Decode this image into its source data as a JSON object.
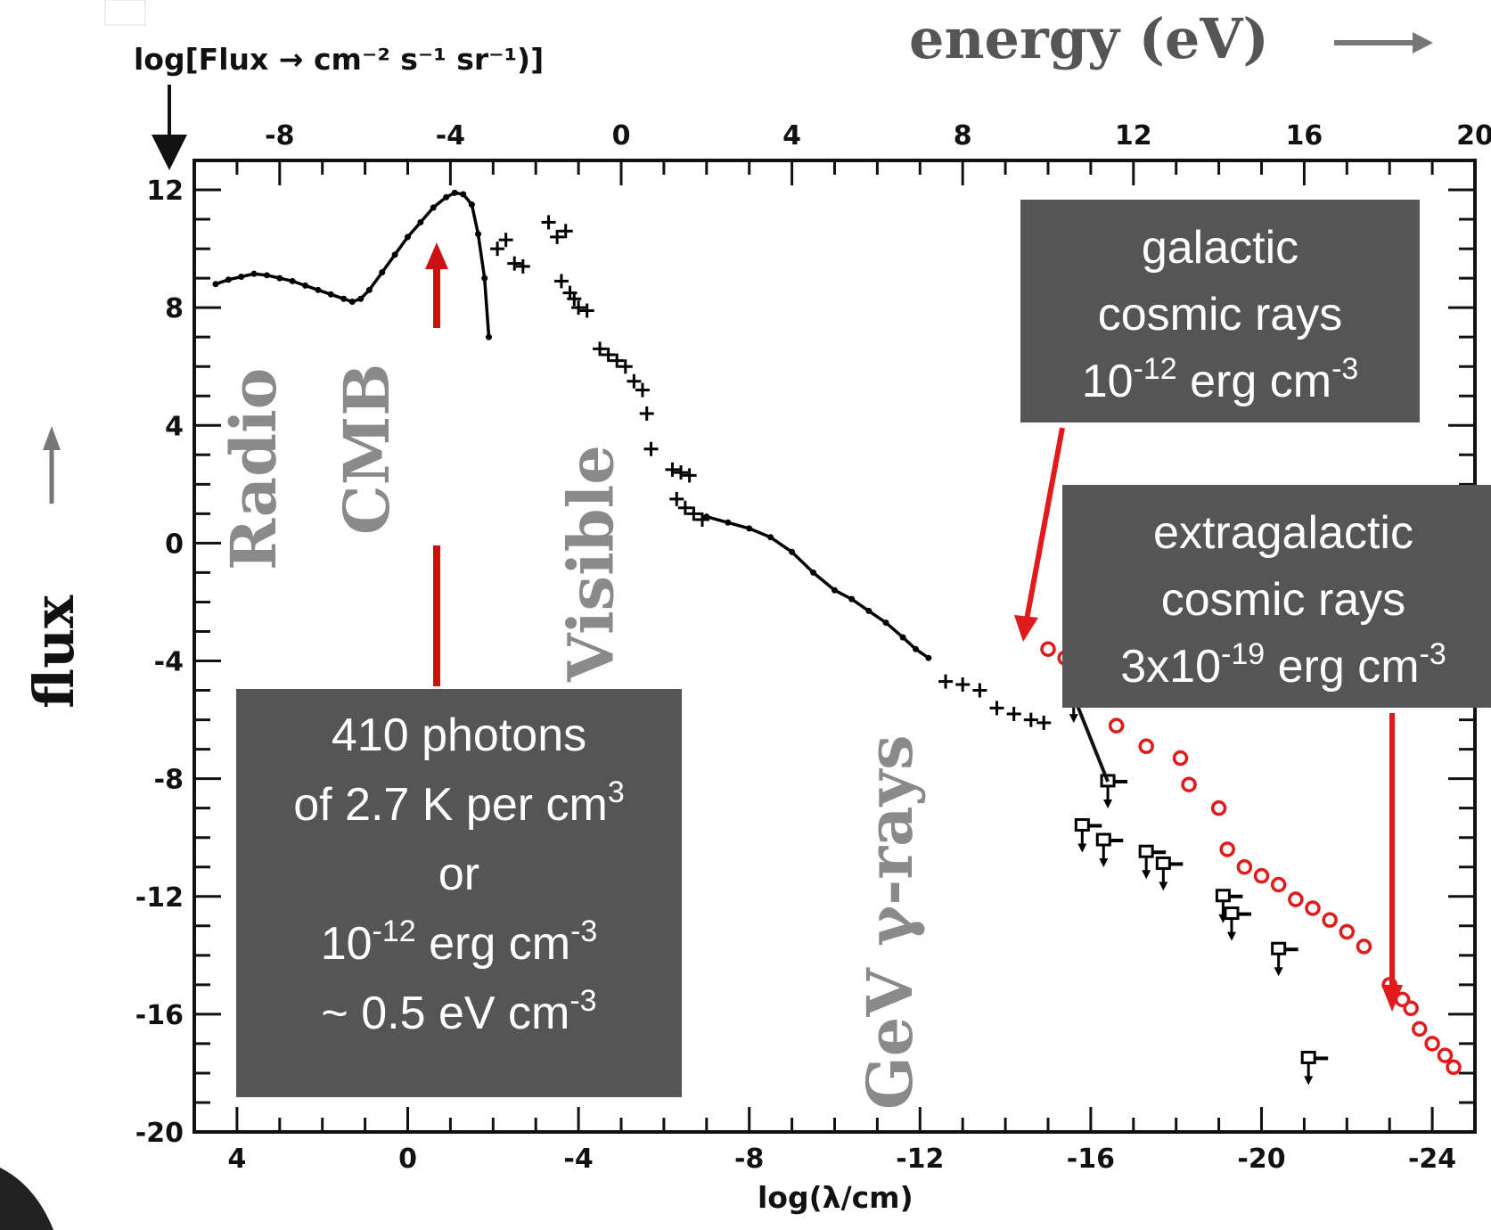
{
  "chart_data": {
    "type": "scatter",
    "top_axis": {
      "label": "energy (eV)",
      "range": [
        -10,
        20
      ],
      "ticks": [
        "-8",
        "-4",
        "0",
        "4",
        "8",
        "12",
        "16",
        "20"
      ]
    },
    "bottom_axis": {
      "label": "log(λ/cm)",
      "range": [
        5,
        -25
      ],
      "ticks": [
        "4",
        "0",
        "-4",
        "-8",
        "-12",
        "-16",
        "-20",
        "-24"
      ]
    },
    "y_axis": {
      "label": "log[Flux  →  cm⁻² s⁻¹ sr⁻¹)]",
      "side_label": "flux",
      "range": [
        -20,
        13
      ],
      "ticks": [
        "12",
        "8",
        "4",
        "0",
        "-4",
        "-8",
        "-12",
        "-16",
        "-20"
      ]
    },
    "bands": [
      {
        "label": "Radio",
        "lambda": 3.6
      },
      {
        "label": "CMB",
        "lambda": 0.95
      },
      {
        "label": "Visible",
        "lambda": -4.3
      },
      {
        "label": "GeV γ-rays",
        "lambda": -11.3
      }
    ],
    "series": [
      {
        "name": "",
        "color": "#000000",
        "style": "line",
        "points": [
          [
            4.5,
            8.8
          ],
          [
            4.2,
            8.95
          ],
          [
            3.9,
            9.05
          ],
          [
            3.6,
            9.15
          ],
          [
            3.3,
            9.1
          ],
          [
            3.0,
            9.0
          ],
          [
            2.7,
            8.9
          ],
          [
            2.4,
            8.75
          ],
          [
            2.1,
            8.6
          ],
          [
            1.8,
            8.45
          ],
          [
            1.5,
            8.3
          ],
          [
            1.3,
            8.2
          ],
          [
            1.1,
            8.3
          ],
          [
            0.9,
            8.6
          ],
          [
            0.6,
            9.2
          ],
          [
            0.3,
            9.8
          ],
          [
            0.0,
            10.4
          ],
          [
            -0.3,
            10.9
          ],
          [
            -0.6,
            11.4
          ],
          [
            -0.9,
            11.75
          ],
          [
            -1.1,
            11.9
          ],
          [
            -1.3,
            11.85
          ],
          [
            -1.5,
            11.5
          ],
          [
            -1.65,
            10.5
          ],
          [
            -1.8,
            9.0
          ],
          [
            -1.9,
            7.0
          ]
        ]
      },
      {
        "name": "",
        "color": "#000000",
        "style": "points",
        "points": [
          [
            -2.1,
            10.0
          ],
          [
            -2.3,
            10.3
          ],
          [
            -2.5,
            9.5
          ],
          [
            -2.7,
            9.4
          ],
          [
            -3.3,
            10.9
          ],
          [
            -3.5,
            10.4
          ],
          [
            -3.7,
            10.6
          ],
          [
            -3.6,
            8.9
          ],
          [
            -3.8,
            8.5
          ],
          [
            -3.9,
            8.3
          ],
          [
            -4.0,
            8.0
          ],
          [
            -4.2,
            7.9
          ],
          [
            -4.5,
            6.6
          ],
          [
            -4.7,
            6.4
          ],
          [
            -4.9,
            6.2
          ],
          [
            -5.1,
            6.0
          ],
          [
            -5.3,
            5.5
          ],
          [
            -5.5,
            5.2
          ],
          [
            -5.6,
            4.4
          ],
          [
            -5.7,
            3.2
          ],
          [
            -6.2,
            2.5
          ],
          [
            -6.4,
            2.4
          ],
          [
            -6.6,
            2.3
          ],
          [
            -6.3,
            1.5
          ],
          [
            -6.5,
            1.2
          ],
          [
            -6.7,
            1.0
          ],
          [
            -6.9,
            0.8
          ]
        ]
      },
      {
        "name": "",
        "color": "#000000",
        "style": "line",
        "points": [
          [
            -7.0,
            0.9
          ],
          [
            -7.5,
            0.7
          ],
          [
            -8.0,
            0.5
          ],
          [
            -8.5,
            0.2
          ],
          [
            -9.0,
            -0.3
          ],
          [
            -9.5,
            -1.0
          ],
          [
            -10.0,
            -1.6
          ],
          [
            -10.4,
            -1.9
          ],
          [
            -10.8,
            -2.3
          ],
          [
            -11.2,
            -2.7
          ],
          [
            -11.6,
            -3.2
          ],
          [
            -11.9,
            -3.6
          ],
          [
            -12.2,
            -3.9
          ]
        ]
      },
      {
        "name": "",
        "color": "#000000",
        "style": "points",
        "points": [
          [
            -12.6,
            -4.7
          ],
          [
            -13.0,
            -4.8
          ],
          [
            -13.4,
            -5.0
          ],
          [
            -13.8,
            -5.6
          ],
          [
            -14.2,
            -5.8
          ],
          [
            -14.6,
            -6.0
          ],
          [
            -14.9,
            -6.1
          ]
        ]
      },
      {
        "name": "",
        "color": "#000000",
        "style": "upper_limits",
        "points": [
          [
            -15.6,
            -5.2
          ],
          [
            -16.4,
            -8.1
          ],
          [
            -15.8,
            -9.6
          ],
          [
            -16.3,
            -10.1
          ],
          [
            -17.3,
            -10.5
          ],
          [
            -17.7,
            -10.9
          ],
          [
            -19.1,
            -12.0
          ],
          [
            -19.3,
            -12.6
          ],
          [
            -20.4,
            -13.8
          ],
          [
            -21.1,
            -17.5
          ]
        ]
      },
      {
        "name": "",
        "color": "#e11b1b",
        "style": "open_circles",
        "points": [
          [
            -15.0,
            -3.6
          ],
          [
            -15.4,
            -3.9
          ],
          [
            -15.8,
            -4.5
          ],
          [
            -16.6,
            -6.2
          ],
          [
            -17.3,
            -6.9
          ],
          [
            -18.1,
            -7.3
          ],
          [
            -18.3,
            -8.2
          ],
          [
            -19.0,
            -9.0
          ],
          [
            -19.2,
            -10.4
          ],
          [
            -19.6,
            -11.0
          ],
          [
            -20.0,
            -11.3
          ],
          [
            -20.4,
            -11.6
          ],
          [
            -20.8,
            -12.1
          ],
          [
            -21.2,
            -12.4
          ],
          [
            -21.6,
            -12.8
          ],
          [
            -22.0,
            -13.2
          ],
          [
            -22.4,
            -13.7
          ],
          [
            -23.0,
            -15.0
          ],
          [
            -23.3,
            -15.5
          ],
          [
            -23.5,
            -15.8
          ],
          [
            -23.7,
            -16.5
          ],
          [
            -24.0,
            -17.0
          ],
          [
            -24.3,
            -17.4
          ],
          [
            -24.5,
            -17.8
          ]
        ]
      }
    ],
    "colors": {
      "box_fill": "#555555",
      "annotation_arrow": "#e11b1b",
      "band_text": "#8a8a8a"
    },
    "grid": false,
    "annotations": [
      {
        "id": "cmb_box",
        "lines": [
          {
            "text": "410 photons"
          },
          {
            "text": "of 2.7 K per cm",
            "sup": "3"
          },
          {
            "text": "or"
          },
          {
            "text": "10",
            "sup": "-12",
            "rest": " erg cm",
            "sup2": "-3"
          },
          {
            "text": "~ 0.5 eV cm",
            "sup": "-3"
          }
        ]
      },
      {
        "id": "galactic_box",
        "lines": [
          {
            "text": "galactic"
          },
          {
            "text": "cosmic rays"
          },
          {
            "text": "10",
            "sup": "-12",
            "rest": " erg cm",
            "sup2": "-3"
          }
        ]
      },
      {
        "id": "extragalactic_box",
        "lines": [
          {
            "text": "extragalactic"
          },
          {
            "text": "cosmic rays"
          },
          {
            "text": "3x10",
            "sup": "-19",
            "rest": " erg cm",
            "sup2": "-3"
          }
        ]
      }
    ]
  }
}
